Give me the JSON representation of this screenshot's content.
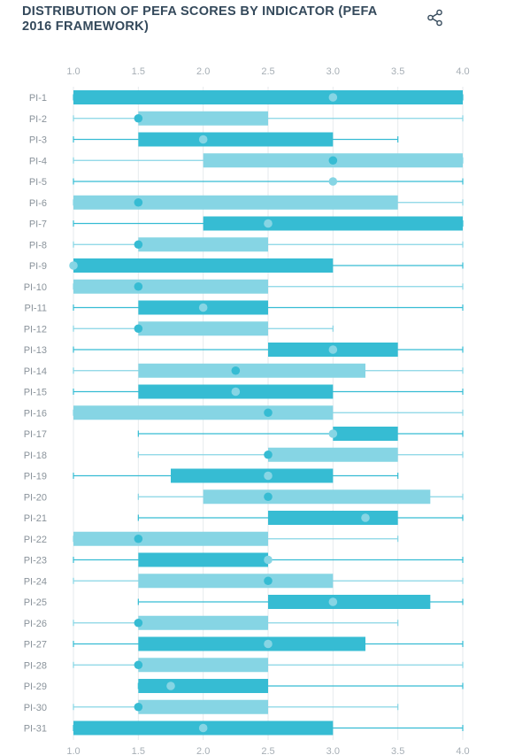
{
  "chart_data": {
    "type": "boxplot",
    "title": "DISTRIBUTION OF PEFA SCORES BY INDICATOR (PEFA 2016 FRAMEWORK)",
    "xlabel": "",
    "ylabel": "",
    "xlim": [
      1.0,
      4.0
    ],
    "xticks": [
      "1.0",
      "1.5",
      "2.0",
      "2.5",
      "3.0",
      "3.5",
      "4.0"
    ],
    "grid": true,
    "colors": {
      "dark": "#36bcd3",
      "light": "#86d5e4",
      "axis_text": "#a6aeb5",
      "title": "#34495b"
    },
    "categories": [
      "PI-1",
      "PI-2",
      "PI-3",
      "PI-4",
      "PI-5",
      "PI-6",
      "PI-7",
      "PI-8",
      "PI-9",
      "PI-10",
      "PI-11",
      "PI-12",
      "PI-13",
      "PI-14",
      "PI-15",
      "PI-16",
      "PI-17",
      "PI-18",
      "PI-19",
      "PI-20",
      "PI-21",
      "PI-22",
      "PI-23",
      "PI-24",
      "PI-25",
      "PI-26",
      "PI-27",
      "PI-28",
      "PI-29",
      "PI-30",
      "PI-31"
    ],
    "series": [
      {
        "min": 1.0,
        "q1": 1.0,
        "median": 3.0,
        "q3": 4.0,
        "max": 4.0
      },
      {
        "min": 1.0,
        "q1": 1.5,
        "median": 1.5,
        "q3": 2.5,
        "max": 4.0
      },
      {
        "min": 1.0,
        "q1": 1.5,
        "median": 2.0,
        "q3": 3.0,
        "max": 3.5
      },
      {
        "min": 1.0,
        "q1": 2.0,
        "median": 3.0,
        "q3": 4.0,
        "max": 4.0
      },
      {
        "min": 1.0,
        "q1": 3.0,
        "median": 3.0,
        "q3": 3.0,
        "max": 4.0
      },
      {
        "min": 1.0,
        "q1": 1.0,
        "median": 1.5,
        "q3": 3.5,
        "max": 4.0
      },
      {
        "min": 1.0,
        "q1": 2.0,
        "median": 2.5,
        "q3": 4.0,
        "max": 4.0
      },
      {
        "min": 1.0,
        "q1": 1.5,
        "median": 1.5,
        "q3": 2.5,
        "max": 4.0
      },
      {
        "min": 1.0,
        "q1": 1.0,
        "median": 1.0,
        "q3": 3.0,
        "max": 4.0
      },
      {
        "min": 1.0,
        "q1": 1.0,
        "median": 1.5,
        "q3": 2.5,
        "max": 4.0
      },
      {
        "min": 1.0,
        "q1": 1.5,
        "median": 2.0,
        "q3": 2.5,
        "max": 4.0
      },
      {
        "min": 1.0,
        "q1": 1.5,
        "median": 1.5,
        "q3": 2.5,
        "max": 3.0
      },
      {
        "min": 1.0,
        "q1": 2.5,
        "median": 3.0,
        "q3": 3.5,
        "max": 4.0
      },
      {
        "min": 1.0,
        "q1": 1.5,
        "median": 2.25,
        "q3": 3.25,
        "max": 4.0
      },
      {
        "min": 1.0,
        "q1": 1.5,
        "median": 2.25,
        "q3": 3.0,
        "max": 4.0
      },
      {
        "min": 1.0,
        "q1": 1.0,
        "median": 2.5,
        "q3": 3.0,
        "max": 4.0
      },
      {
        "min": 1.5,
        "q1": 3.0,
        "median": 3.0,
        "q3": 3.5,
        "max": 4.0
      },
      {
        "min": 1.5,
        "q1": 2.5,
        "median": 2.5,
        "q3": 3.5,
        "max": 4.0
      },
      {
        "min": 1.0,
        "q1": 1.75,
        "median": 2.5,
        "q3": 3.0,
        "max": 3.5
      },
      {
        "min": 1.5,
        "q1": 2.0,
        "median": 2.5,
        "q3": 3.75,
        "max": 4.0
      },
      {
        "min": 1.5,
        "q1": 2.5,
        "median": 3.25,
        "q3": 3.5,
        "max": 4.0
      },
      {
        "min": 1.0,
        "q1": 1.0,
        "median": 1.5,
        "q3": 2.5,
        "max": 3.5
      },
      {
        "min": 1.0,
        "q1": 1.5,
        "median": 2.5,
        "q3": 2.5,
        "max": 4.0
      },
      {
        "min": 1.0,
        "q1": 1.5,
        "median": 2.5,
        "q3": 3.0,
        "max": 4.0
      },
      {
        "min": 1.5,
        "q1": 2.5,
        "median": 3.0,
        "q3": 3.75,
        "max": 4.0
      },
      {
        "min": 1.0,
        "q1": 1.5,
        "median": 1.5,
        "q3": 2.5,
        "max": 3.5
      },
      {
        "min": 1.0,
        "q1": 1.5,
        "median": 2.5,
        "q3": 3.25,
        "max": 4.0
      },
      {
        "min": 1.0,
        "q1": 1.5,
        "median": 1.5,
        "q3": 2.5,
        "max": 4.0
      },
      {
        "min": 1.5,
        "q1": 1.5,
        "median": 1.75,
        "q3": 2.5,
        "max": 4.0
      },
      {
        "min": 1.0,
        "q1": 1.5,
        "median": 1.5,
        "q3": 2.5,
        "max": 3.5
      },
      {
        "min": 1.0,
        "q1": 1.0,
        "median": 2.0,
        "q3": 3.0,
        "max": 4.0
      }
    ]
  },
  "share": {
    "icon": "share-icon"
  }
}
